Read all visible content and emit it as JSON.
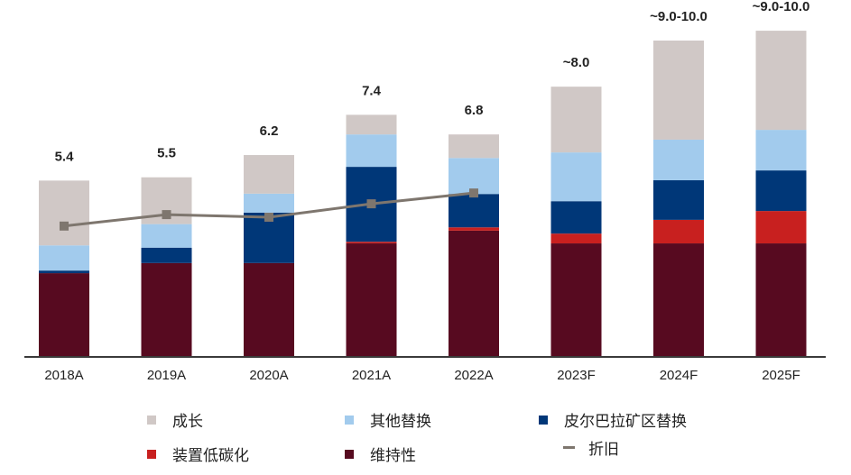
{
  "chart_data": {
    "type": "bar",
    "stacked": true,
    "title": "",
    "xlabel": "",
    "ylabel": "",
    "ylim": [
      0,
      10
    ],
    "grid": false,
    "legend_position": "bottom",
    "categories": [
      "2018A",
      "2019A",
      "2020A",
      "2021A",
      "2022A",
      "2023F",
      "2024F",
      "2025F"
    ],
    "total_labels": [
      "5.4",
      "5.5",
      "6.2",
      "7.4",
      "6.8",
      "~8.0",
      "~9.0-10.0",
      "~9.0-10.0"
    ],
    "series": [
      {
        "name": "维持性",
        "key": "maintenance",
        "color": "#570A20",
        "values": [
          2.56,
          2.87,
          2.87,
          3.47,
          3.86,
          3.47,
          3.47,
          3.47
        ]
      },
      {
        "name": "装置低碳化",
        "key": "decarbonisation",
        "color": "#C8201F",
        "values": [
          0.0,
          0.0,
          0.0,
          0.05,
          0.1,
          0.3,
          0.72,
          0.99
        ]
      },
      {
        "name": "皮尔巴拉矿区替换",
        "key": "pilbara",
        "color": "#003778",
        "values": [
          0.08,
          0.47,
          1.54,
          2.29,
          1.02,
          0.99,
          1.21,
          1.24
        ]
      },
      {
        "name": "其他替换",
        "key": "other_replacement",
        "color": "#A2CBED",
        "values": [
          0.77,
          0.72,
          0.58,
          0.99,
          1.1,
          1.49,
          1.24,
          1.24
        ]
      },
      {
        "name": "成长",
        "key": "growth",
        "color": "#D0C8C6",
        "values": [
          1.98,
          1.43,
          1.18,
          0.6,
          0.72,
          2.01,
          3.03,
          3.03
        ]
      }
    ],
    "line_series": {
      "name": "折旧",
      "color": "#7E766E",
      "values": [
        4.0,
        4.35,
        4.27,
        4.68,
        5.01,
        null,
        null,
        null
      ]
    }
  },
  "legend": {
    "items": [
      {
        "label": "成长",
        "type": "square",
        "color": "#D0C8C6"
      },
      {
        "label": "其他替换",
        "type": "square",
        "color": "#A2CBED"
      },
      {
        "label": "皮尔巴拉矿区替换",
        "type": "square",
        "color": "#003778"
      },
      {
        "label": "装置低碳化",
        "type": "square",
        "color": "#C8201F"
      },
      {
        "label": "维持性",
        "type": "square",
        "color": "#570A20"
      },
      {
        "label": "折旧",
        "type": "line",
        "color": "#7E766E"
      }
    ]
  }
}
